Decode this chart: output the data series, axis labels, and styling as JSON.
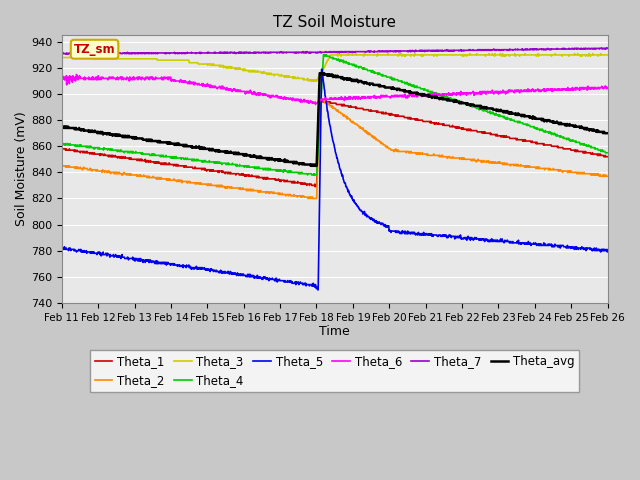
{
  "title": "TZ Soil Moisture",
  "xlabel": "Time",
  "ylabel": "Soil Moisture (mV)",
  "ylim": [
    740,
    945
  ],
  "yticks": [
    740,
    760,
    780,
    800,
    820,
    840,
    860,
    880,
    900,
    920,
    940
  ],
  "xtick_labels": [
    "Feb 11",
    "Feb 12",
    "Feb 13",
    "Feb 14",
    "Feb 15",
    "Feb 16",
    "Feb 17",
    "Feb 18",
    "Feb 19",
    "Feb 20",
    "Feb 21",
    "Feb 22",
    "Feb 23",
    "Feb 24",
    "Feb 25",
    "Feb 26"
  ],
  "fig_bg_color": "#c8c8c8",
  "plot_bg_color": "#e8e8e8",
  "series_colors": {
    "Theta_1": "#cc0000",
    "Theta_2": "#ff8800",
    "Theta_3": "#cccc00",
    "Theta_4": "#00cc00",
    "Theta_5": "#0000ee",
    "Theta_6": "#ff00ff",
    "Theta_7": "#9900cc",
    "Theta_avg": "#000000"
  }
}
